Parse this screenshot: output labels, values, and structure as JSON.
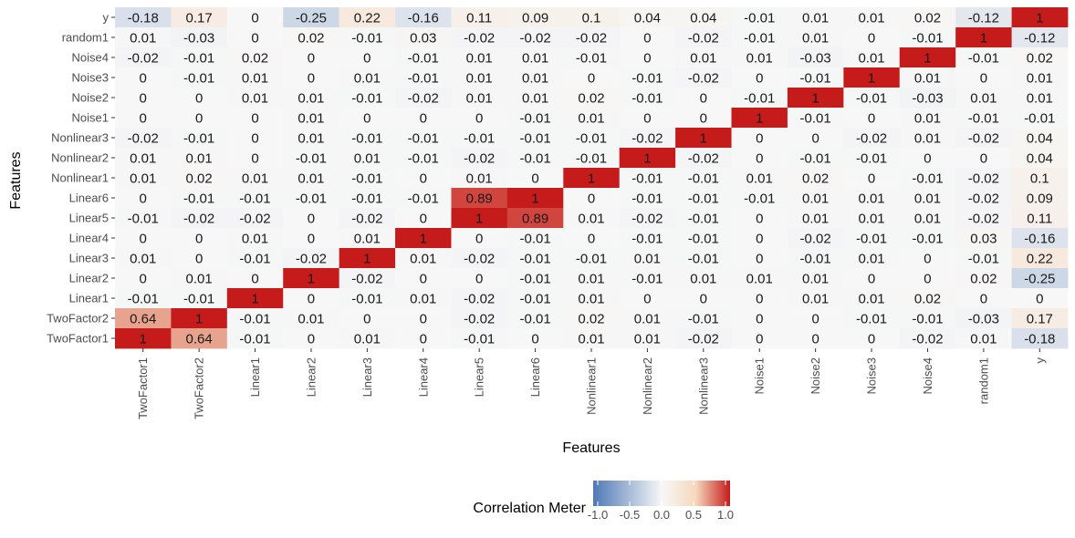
{
  "chart_data": {
    "type": "heatmap",
    "title": "",
    "xlabel": "Features",
    "ylabel": "Features",
    "x_categories": [
      "TwoFactor1",
      "TwoFactor2",
      "Linear1",
      "Linear2",
      "Linear3",
      "Linear4",
      "Linear5",
      "Linear6",
      "Nonlinear1",
      "Nonlinear2",
      "Nonlinear3",
      "Noise1",
      "Noise2",
      "Noise3",
      "Noise4",
      "random1",
      "y"
    ],
    "y_categories_top_to_bottom": [
      "y",
      "random1",
      "Noise4",
      "Noise3",
      "Noise2",
      "Noise1",
      "Nonlinear3",
      "Nonlinear2",
      "Nonlinear1",
      "Linear6",
      "Linear5",
      "Linear4",
      "Linear3",
      "Linear2",
      "Linear1",
      "TwoFactor2",
      "TwoFactor1"
    ],
    "values": [
      [
        -0.18,
        0.17,
        0,
        -0.25,
        0.22,
        -0.16,
        0.11,
        0.09,
        0.1,
        0.04,
        0.04,
        -0.01,
        0.01,
        0.01,
        0.02,
        -0.12,
        1
      ],
      [
        0.01,
        -0.03,
        0,
        0.02,
        -0.01,
        0.03,
        -0.02,
        -0.02,
        -0.02,
        0,
        -0.02,
        -0.01,
        0.01,
        0,
        -0.01,
        1,
        -0.12
      ],
      [
        -0.02,
        -0.01,
        0.02,
        0,
        0,
        -0.01,
        0.01,
        0.01,
        -0.01,
        0,
        0.01,
        0.01,
        -0.03,
        0.01,
        1,
        -0.01,
        0.02
      ],
      [
        0,
        -0.01,
        0.01,
        0,
        0.01,
        -0.01,
        0.01,
        0.01,
        0,
        -0.01,
        -0.02,
        0,
        -0.01,
        1,
        0.01,
        0,
        0.01
      ],
      [
        0,
        0,
        0.01,
        0.01,
        -0.01,
        -0.02,
        0.01,
        0.01,
        0.02,
        -0.01,
        0,
        -0.01,
        1,
        -0.01,
        -0.03,
        0.01,
        0.01
      ],
      [
        0,
        0,
        0,
        0.01,
        0,
        0,
        0,
        -0.01,
        0.01,
        0,
        0,
        1,
        -0.01,
        0,
        0.01,
        -0.01,
        -0.01
      ],
      [
        -0.02,
        -0.01,
        0,
        0.01,
        -0.01,
        -0.01,
        -0.01,
        -0.01,
        -0.01,
        -0.02,
        1,
        0,
        0,
        -0.02,
        0.01,
        -0.02,
        0.04
      ],
      [
        0.01,
        0.01,
        0,
        -0.01,
        0.01,
        -0.01,
        -0.02,
        -0.01,
        -0.01,
        1,
        -0.02,
        0,
        -0.01,
        -0.01,
        0,
        0,
        0.04
      ],
      [
        0.01,
        0.02,
        0.01,
        0.01,
        -0.01,
        0,
        0.01,
        0,
        1,
        -0.01,
        -0.01,
        0.01,
        0.02,
        0,
        -0.01,
        -0.02,
        0.1
      ],
      [
        0,
        -0.01,
        -0.01,
        -0.01,
        -0.01,
        -0.01,
        0.89,
        1,
        0,
        -0.01,
        -0.01,
        -0.01,
        0.01,
        0.01,
        0.01,
        -0.02,
        0.09
      ],
      [
        -0.01,
        -0.02,
        -0.02,
        0,
        -0.02,
        0,
        1,
        0.89,
        0.01,
        -0.02,
        -0.01,
        0,
        0.01,
        0.01,
        0.01,
        -0.02,
        0.11
      ],
      [
        0,
        0,
        0.01,
        0,
        0.01,
        1,
        0,
        -0.01,
        0,
        -0.01,
        -0.01,
        0,
        -0.02,
        -0.01,
        -0.01,
        0.03,
        -0.16
      ],
      [
        0.01,
        0,
        -0.01,
        -0.02,
        1,
        0.01,
        -0.02,
        -0.01,
        -0.01,
        0.01,
        -0.01,
        0,
        -0.01,
        0.01,
        0,
        -0.01,
        0.22
      ],
      [
        0,
        0.01,
        0,
        1,
        -0.02,
        0,
        0,
        -0.01,
        0.01,
        -0.01,
        0.01,
        0.01,
        0.01,
        0,
        0,
        0.02,
        -0.25
      ],
      [
        -0.01,
        -0.01,
        1,
        0,
        -0.01,
        0.01,
        -0.02,
        -0.01,
        0.01,
        0,
        0,
        0,
        0.01,
        0.01,
        0.02,
        0,
        0
      ],
      [
        0.64,
        1,
        -0.01,
        0.01,
        0,
        0,
        -0.02,
        -0.01,
        0.02,
        0.01,
        -0.01,
        0,
        0,
        -0.01,
        -0.01,
        -0.03,
        0.17
      ],
      [
        1,
        0.64,
        -0.01,
        0,
        0.01,
        0,
        -0.01,
        0,
        0.01,
        0.01,
        -0.02,
        0,
        0,
        0,
        -0.02,
        0.01,
        -0.18
      ]
    ],
    "color_scale": {
      "min": -1.0,
      "max": 1.0,
      "low_color": "#4e79b5",
      "mid_color": "#f7f7f7",
      "high_color": "#c51b1b"
    },
    "legend": {
      "title": "Correlation Meter",
      "placement": "bottom",
      "ticks": [
        "-1.0",
        "-0.5",
        "0.0",
        "0.5",
        "1.0"
      ],
      "tick_values": [
        -1.0,
        -0.5,
        0.0,
        0.5,
        1.0
      ]
    },
    "grid": false
  }
}
